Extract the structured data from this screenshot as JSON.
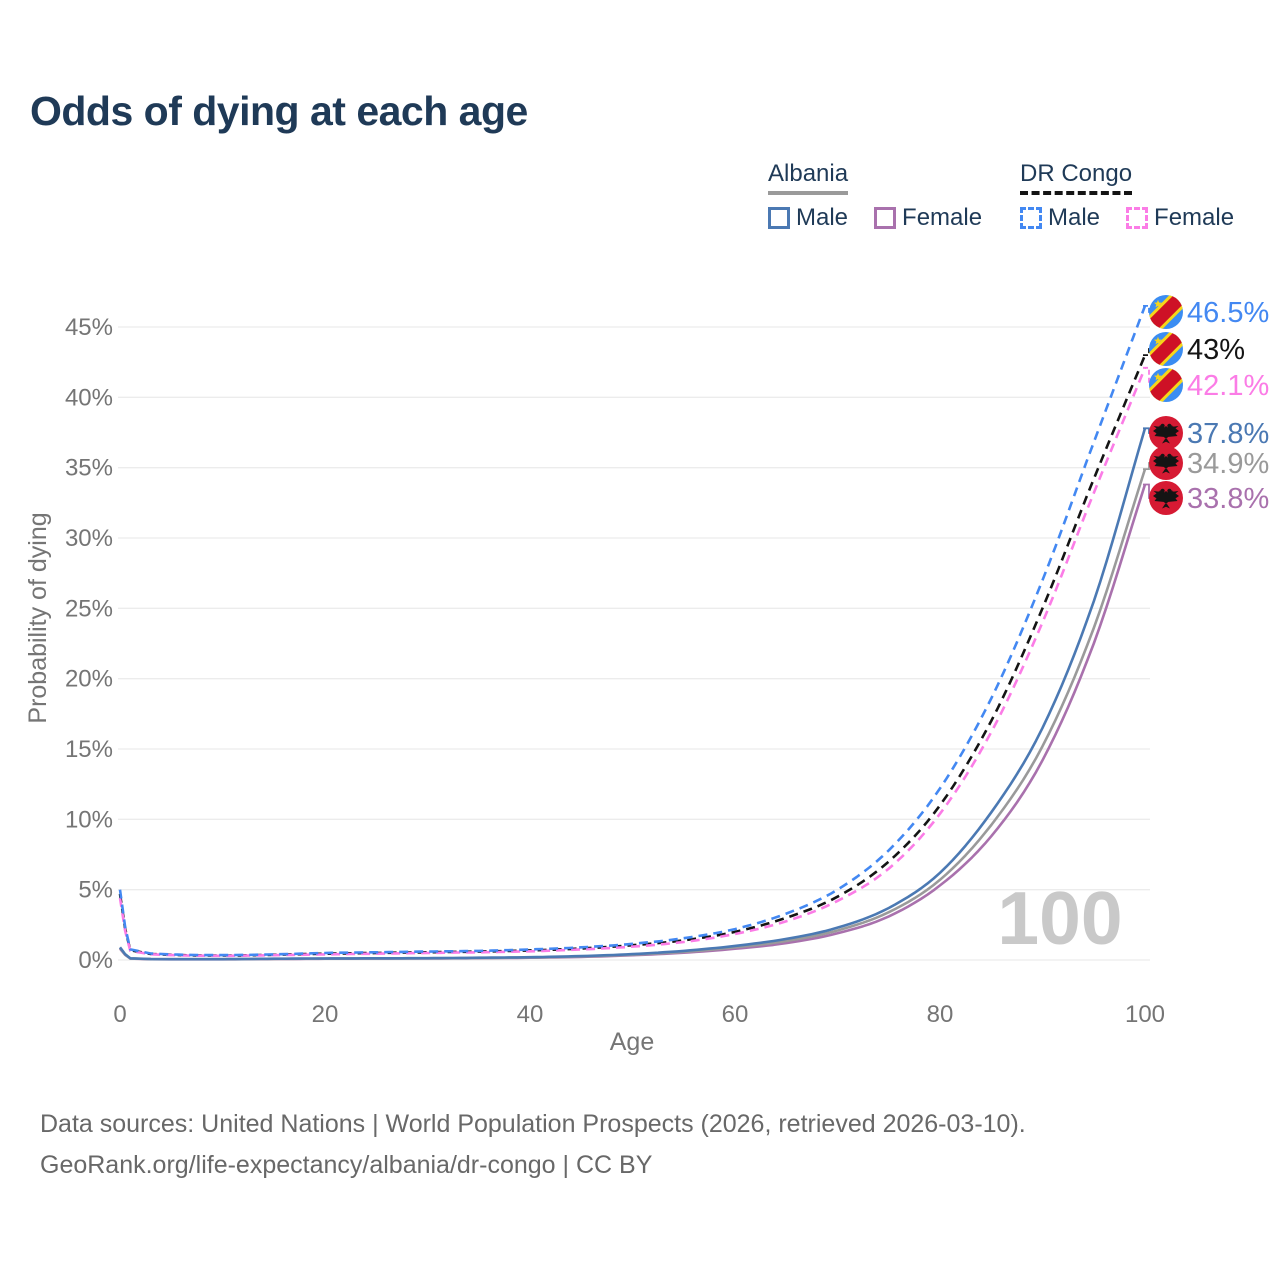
{
  "title": "Odds of dying at each age",
  "legend": {
    "groups": [
      {
        "country": "Albania",
        "line_color": "#9a9a9a",
        "line_style": "solid",
        "items": [
          {
            "label": "Male",
            "color": "#4b79b3",
            "dash": false
          },
          {
            "label": "Female",
            "color": "#a971ad",
            "dash": false
          }
        ]
      },
      {
        "country": "DR Congo",
        "line_color": "#141414",
        "line_style": "dashed",
        "items": [
          {
            "label": "Male",
            "color": "#4388f2",
            "dash": true
          },
          {
            "label": "Female",
            "color": "#fb7ce6",
            "dash": true
          }
        ]
      }
    ]
  },
  "chart_data": {
    "type": "line",
    "title": "Odds of dying at each age",
    "xlabel": "Age",
    "ylabel": "Probability of dying",
    "xlim": [
      0,
      100
    ],
    "ylim_percent": [
      0,
      47
    ],
    "x_ticks": [
      0,
      20,
      40,
      60,
      80,
      100
    ],
    "y_ticks": [
      "0%",
      "5%",
      "10%",
      "15%",
      "20%",
      "25%",
      "30%",
      "35%",
      "40%",
      "45%"
    ],
    "grid": true,
    "legend_position": "top-right",
    "age_marker": "100",
    "x": [
      0,
      1,
      5,
      10,
      15,
      20,
      25,
      30,
      35,
      40,
      45,
      50,
      55,
      60,
      65,
      70,
      75,
      80,
      85,
      90,
      95,
      100
    ],
    "series": [
      {
        "name": "Albania Female",
        "country": "Albania",
        "sex": "Female",
        "color": "#a971ad",
        "dash": false,
        "flag": "albania",
        "end_label": "33.8%",
        "values": [
          0.8,
          0.1,
          0.05,
          0.05,
          0.07,
          0.09,
          0.1,
          0.11,
          0.13,
          0.16,
          0.22,
          0.34,
          0.52,
          0.8,
          1.2,
          1.9,
          3.1,
          5.3,
          8.8,
          14.2,
          22.5,
          33.8
        ]
      },
      {
        "name": "Albania",
        "country": "Albania",
        "sex": "Both",
        "color": "#9a9a9a",
        "dash": false,
        "flag": "albania",
        "end_label": "34.9%",
        "values": [
          0.85,
          0.11,
          0.055,
          0.055,
          0.08,
          0.1,
          0.11,
          0.12,
          0.14,
          0.18,
          0.25,
          0.38,
          0.58,
          0.9,
          1.35,
          2.1,
          3.4,
          5.7,
          9.6,
          15.2,
          23.6,
          34.9
        ]
      },
      {
        "name": "Albania Male",
        "country": "Albania",
        "sex": "Male",
        "color": "#4b79b3",
        "dash": false,
        "flag": "albania",
        "end_label": "37.8%",
        "values": [
          0.9,
          0.12,
          0.06,
          0.06,
          0.09,
          0.11,
          0.12,
          0.13,
          0.16,
          0.2,
          0.28,
          0.42,
          0.65,
          1.0,
          1.5,
          2.3,
          3.7,
          6.2,
          10.5,
          16.5,
          25.5,
          37.8
        ]
      },
      {
        "name": "DR Congo",
        "country": "DR Congo",
        "sex": "Both",
        "color": "#141414",
        "dash": true,
        "flag": "dr-congo",
        "end_label": "43%",
        "values": [
          4.7,
          0.7,
          0.37,
          0.32,
          0.37,
          0.45,
          0.5,
          0.55,
          0.6,
          0.68,
          0.82,
          1.05,
          1.4,
          2.0,
          3.0,
          4.5,
          7.0,
          11.0,
          17.0,
          25.0,
          34.2,
          43.0
        ]
      },
      {
        "name": "DR Congo Female",
        "country": "DR Congo",
        "sex": "Female",
        "color": "#fb7ce6",
        "dash": true,
        "flag": "dr-congo",
        "end_label": "42.1%",
        "values": [
          4.4,
          0.65,
          0.35,
          0.3,
          0.34,
          0.4,
          0.45,
          0.5,
          0.55,
          0.62,
          0.75,
          0.95,
          1.28,
          1.85,
          2.75,
          4.2,
          6.5,
          10.4,
          16.2,
          24.0,
          33.2,
          42.1
        ]
      },
      {
        "name": "DR Congo Male",
        "country": "DR Congo",
        "sex": "Male",
        "color": "#4388f2",
        "dash": true,
        "flag": "dr-congo",
        "end_label": "46.5%",
        "values": [
          5.0,
          0.75,
          0.4,
          0.35,
          0.4,
          0.5,
          0.55,
          0.6,
          0.65,
          0.75,
          0.9,
          1.15,
          1.55,
          2.2,
          3.3,
          5.0,
          7.8,
          12.2,
          18.6,
          27.0,
          36.8,
          46.5
        ]
      }
    ],
    "flag_colors": {
      "dr_congo_blue": "#3b8df2",
      "dr_congo_red": "#ce1126",
      "dr_congo_yellow": "#f7d618",
      "albania_red": "#d61a33",
      "albania_eagle": "#141414"
    }
  },
  "footer": {
    "line1": "Data sources: United Nations | World Population Prospects (2026, retrieved 2026-03-10).",
    "line2": "GeoRank.org/life-expectancy/albania/dr-congo | CC BY"
  }
}
